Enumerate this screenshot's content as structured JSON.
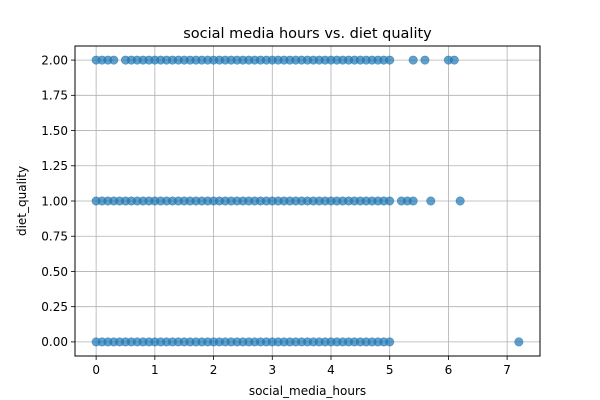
{
  "chart_data": {
    "type": "scatter",
    "title": "social media hours vs. diet quality",
    "xlabel": "social_media_hours",
    "ylabel": "diet_quality",
    "xlim": [
      -0.36,
      7.56
    ],
    "ylim": [
      -0.1,
      2.1
    ],
    "xticks": [
      0,
      1,
      2,
      3,
      4,
      5,
      6,
      7
    ],
    "xtick_labels": [
      "0",
      "1",
      "2",
      "3",
      "4",
      "5",
      "6",
      "7"
    ],
    "yticks": [
      0.0,
      0.25,
      0.5,
      0.75,
      1.0,
      1.25,
      1.5,
      1.75,
      2.0
    ],
    "ytick_labels": [
      "0.00",
      "0.25",
      "0.50",
      "0.75",
      "1.00",
      "1.25",
      "1.50",
      "1.75",
      "2.00"
    ],
    "grid": true,
    "marker_color": "#1f77b4",
    "marker_alpha": 0.7,
    "series": [
      {
        "points": [
          [
            0.0,
            2
          ],
          [
            0.1,
            2
          ],
          [
            0.2,
            2
          ],
          [
            0.3,
            2
          ],
          [
            0.5,
            2
          ],
          [
            0.6,
            2
          ],
          [
            0.7,
            2
          ],
          [
            0.8,
            2
          ],
          [
            0.9,
            2
          ],
          [
            1.0,
            2
          ],
          [
            1.1,
            2
          ],
          [
            1.2,
            2
          ],
          [
            1.3,
            2
          ],
          [
            1.4,
            2
          ],
          [
            1.5,
            2
          ],
          [
            1.6,
            2
          ],
          [
            1.7,
            2
          ],
          [
            1.8,
            2
          ],
          [
            1.9,
            2
          ],
          [
            2.0,
            2
          ],
          [
            2.1,
            2
          ],
          [
            2.2,
            2
          ],
          [
            2.3,
            2
          ],
          [
            2.4,
            2
          ],
          [
            2.5,
            2
          ],
          [
            2.6,
            2
          ],
          [
            2.7,
            2
          ],
          [
            2.8,
            2
          ],
          [
            2.9,
            2
          ],
          [
            3.0,
            2
          ],
          [
            3.1,
            2
          ],
          [
            3.2,
            2
          ],
          [
            3.3,
            2
          ],
          [
            3.4,
            2
          ],
          [
            3.5,
            2
          ],
          [
            3.6,
            2
          ],
          [
            3.7,
            2
          ],
          [
            3.8,
            2
          ],
          [
            3.9,
            2
          ],
          [
            4.0,
            2
          ],
          [
            4.1,
            2
          ],
          [
            4.2,
            2
          ],
          [
            4.3,
            2
          ],
          [
            4.4,
            2
          ],
          [
            4.5,
            2
          ],
          [
            4.6,
            2
          ],
          [
            4.7,
            2
          ],
          [
            4.8,
            2
          ],
          [
            4.9,
            2
          ],
          [
            5.0,
            2
          ],
          [
            5.4,
            2
          ],
          [
            5.6,
            2
          ],
          [
            6.0,
            2
          ],
          [
            6.1,
            2
          ],
          [
            0.0,
            1
          ],
          [
            0.1,
            1
          ],
          [
            0.2,
            1
          ],
          [
            0.3,
            1
          ],
          [
            0.4,
            1
          ],
          [
            0.5,
            1
          ],
          [
            0.6,
            1
          ],
          [
            0.7,
            1
          ],
          [
            0.8,
            1
          ],
          [
            0.9,
            1
          ],
          [
            1.0,
            1
          ],
          [
            1.1,
            1
          ],
          [
            1.2,
            1
          ],
          [
            1.3,
            1
          ],
          [
            1.4,
            1
          ],
          [
            1.5,
            1
          ],
          [
            1.6,
            1
          ],
          [
            1.7,
            1
          ],
          [
            1.8,
            1
          ],
          [
            1.9,
            1
          ],
          [
            2.0,
            1
          ],
          [
            2.1,
            1
          ],
          [
            2.2,
            1
          ],
          [
            2.3,
            1
          ],
          [
            2.4,
            1
          ],
          [
            2.5,
            1
          ],
          [
            2.6,
            1
          ],
          [
            2.7,
            1
          ],
          [
            2.8,
            1
          ],
          [
            2.9,
            1
          ],
          [
            3.0,
            1
          ],
          [
            3.1,
            1
          ],
          [
            3.2,
            1
          ],
          [
            3.3,
            1
          ],
          [
            3.4,
            1
          ],
          [
            3.5,
            1
          ],
          [
            3.6,
            1
          ],
          [
            3.7,
            1
          ],
          [
            3.8,
            1
          ],
          [
            3.9,
            1
          ],
          [
            4.0,
            1
          ],
          [
            4.1,
            1
          ],
          [
            4.2,
            1
          ],
          [
            4.3,
            1
          ],
          [
            4.4,
            1
          ],
          [
            4.5,
            1
          ],
          [
            4.6,
            1
          ],
          [
            4.7,
            1
          ],
          [
            4.8,
            1
          ],
          [
            4.9,
            1
          ],
          [
            5.0,
            1
          ],
          [
            5.2,
            1
          ],
          [
            5.3,
            1
          ],
          [
            5.4,
            1
          ],
          [
            5.7,
            1
          ],
          [
            6.2,
            1
          ],
          [
            0.0,
            0
          ],
          [
            0.1,
            0
          ],
          [
            0.2,
            0
          ],
          [
            0.3,
            0
          ],
          [
            0.4,
            0
          ],
          [
            0.5,
            0
          ],
          [
            0.6,
            0
          ],
          [
            0.7,
            0
          ],
          [
            0.8,
            0
          ],
          [
            0.9,
            0
          ],
          [
            1.0,
            0
          ],
          [
            1.1,
            0
          ],
          [
            1.2,
            0
          ],
          [
            1.3,
            0
          ],
          [
            1.4,
            0
          ],
          [
            1.5,
            0
          ],
          [
            1.6,
            0
          ],
          [
            1.7,
            0
          ],
          [
            1.8,
            0
          ],
          [
            1.9,
            0
          ],
          [
            2.0,
            0
          ],
          [
            2.1,
            0
          ],
          [
            2.2,
            0
          ],
          [
            2.3,
            0
          ],
          [
            2.4,
            0
          ],
          [
            2.5,
            0
          ],
          [
            2.6,
            0
          ],
          [
            2.7,
            0
          ],
          [
            2.8,
            0
          ],
          [
            2.9,
            0
          ],
          [
            3.0,
            0
          ],
          [
            3.1,
            0
          ],
          [
            3.2,
            0
          ],
          [
            3.3,
            0
          ],
          [
            3.4,
            0
          ],
          [
            3.5,
            0
          ],
          [
            3.6,
            0
          ],
          [
            3.7,
            0
          ],
          [
            3.8,
            0
          ],
          [
            3.9,
            0
          ],
          [
            4.0,
            0
          ],
          [
            4.1,
            0
          ],
          [
            4.2,
            0
          ],
          [
            4.3,
            0
          ],
          [
            4.4,
            0
          ],
          [
            4.5,
            0
          ],
          [
            4.6,
            0
          ],
          [
            4.7,
            0
          ],
          [
            4.8,
            0
          ],
          [
            4.9,
            0
          ],
          [
            5.0,
            0
          ],
          [
            7.2,
            0
          ]
        ]
      }
    ]
  }
}
